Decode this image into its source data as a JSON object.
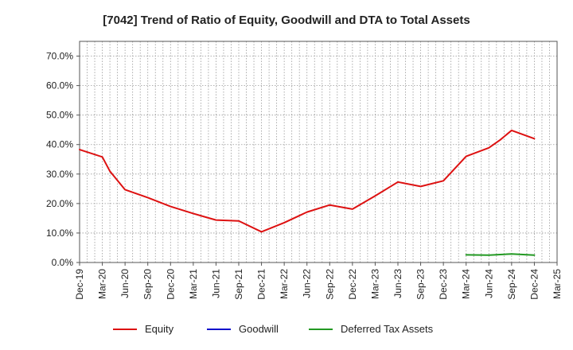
{
  "chart_data": {
    "type": "line",
    "title": "[7042]  Trend of Ratio of Equity, Goodwill and DTA to Total Assets",
    "xlabel": "",
    "ylabel": "",
    "ylim": [
      0,
      75
    ],
    "yticks": [
      0,
      10,
      20,
      30,
      40,
      50,
      60,
      70
    ],
    "ytick_labels": [
      "0.0%",
      "10.0%",
      "20.0%",
      "30.0%",
      "40.0%",
      "50.0%",
      "60.0%",
      "70.0%"
    ],
    "categories": [
      "Dec-19",
      "Mar-20",
      "Jun-20",
      "Sep-20",
      "Dec-20",
      "Mar-21",
      "Jun-21",
      "Sep-21",
      "Dec-21",
      "Mar-22",
      "Jun-22",
      "Sep-22",
      "Dec-22",
      "Mar-23",
      "Jun-23",
      "Sep-23",
      "Dec-23",
      "Mar-24",
      "Jun-24",
      "Sep-24",
      "Dec-24",
      "Mar-25"
    ],
    "grid": true,
    "legend_position": "bottom",
    "series": [
      {
        "name": "Equity",
        "color": "#dd1111",
        "points": [
          {
            "x": 0,
            "y": 38.3
          },
          {
            "x": 1,
            "y": 35.8
          },
          {
            "x": 1.33,
            "y": 31.0
          },
          {
            "x": 2,
            "y": 24.7
          },
          {
            "x": 3,
            "y": 22.0
          },
          {
            "x": 4,
            "y": 19.0
          },
          {
            "x": 5,
            "y": 16.6
          },
          {
            "x": 6,
            "y": 14.4
          },
          {
            "x": 7,
            "y": 14.1
          },
          {
            "x": 8,
            "y": 10.4
          },
          {
            "x": 9,
            "y": 13.5
          },
          {
            "x": 10,
            "y": 17.1
          },
          {
            "x": 11,
            "y": 19.5
          },
          {
            "x": 12,
            "y": 18.1
          },
          {
            "x": 13,
            "y": 22.6
          },
          {
            "x": 14,
            "y": 27.3
          },
          {
            "x": 15,
            "y": 25.8
          },
          {
            "x": 16,
            "y": 27.7
          },
          {
            "x": 17,
            "y": 36.0
          },
          {
            "x": 18,
            "y": 38.9
          },
          {
            "x": 18.5,
            "y": 41.6
          },
          {
            "x": 19,
            "y": 44.8
          },
          {
            "x": 20,
            "y": 42.0
          }
        ]
      },
      {
        "name": "Goodwill",
        "color": "#1111cc",
        "points": []
      },
      {
        "name": "Deferred Tax Assets",
        "color": "#229922",
        "points": [
          {
            "x": 17,
            "y": 2.6
          },
          {
            "x": 18,
            "y": 2.5
          },
          {
            "x": 19,
            "y": 2.9
          },
          {
            "x": 20,
            "y": 2.5
          }
        ]
      }
    ]
  }
}
